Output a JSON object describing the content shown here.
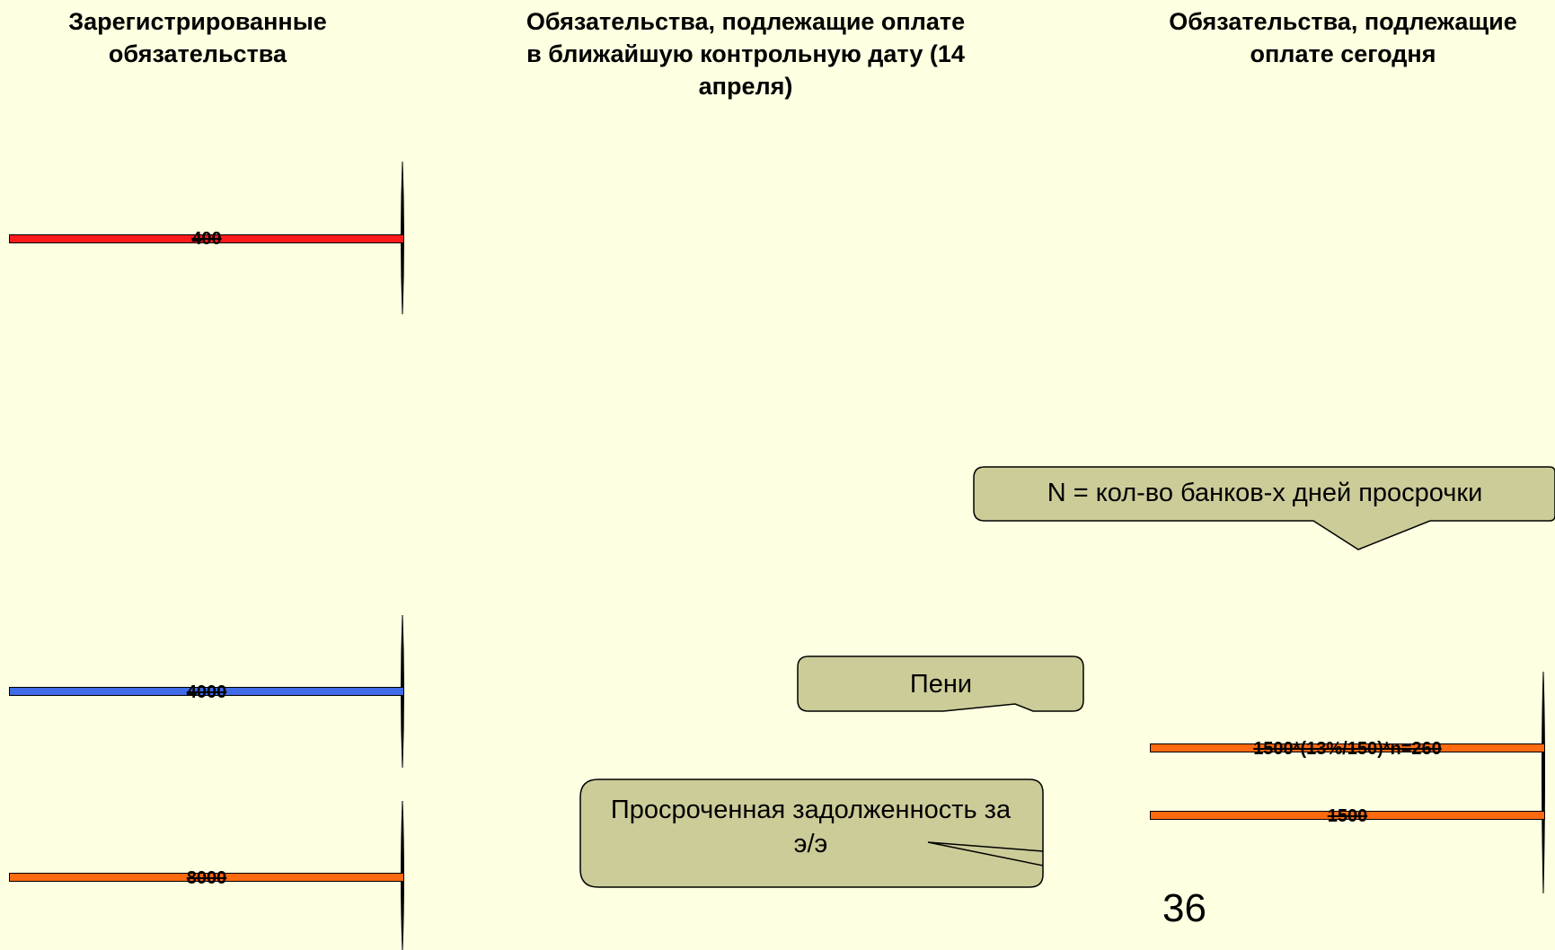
{
  "columns": {
    "left_title": "Зарегистрированные обязательства",
    "mid_title": "Обязательства, подлежащие оплате в ближайшую контрольную дату (14 апреля)",
    "right_title": "Обязательства, подлежащие оплате сегодня"
  },
  "bars": {
    "red": {
      "label": "400",
      "color": "#ff1a1a"
    },
    "blue": {
      "label": "4000",
      "color": "#3f6ae8"
    },
    "orange_left": {
      "label": "8000",
      "color": "#ff6a10"
    },
    "penalty": {
      "label": "1500*(13%/150)*n=260",
      "color": "#ff6a10"
    },
    "debt": {
      "label": "1500",
      "color": "#ff6a10"
    }
  },
  "callouts": {
    "n_note": "N = кол-во банков-х дней просрочки",
    "penalty": "Пени",
    "overdue": "Просроченная задолженность за э/э",
    "fill": "#cccc99"
  },
  "slide_number": "36"
}
